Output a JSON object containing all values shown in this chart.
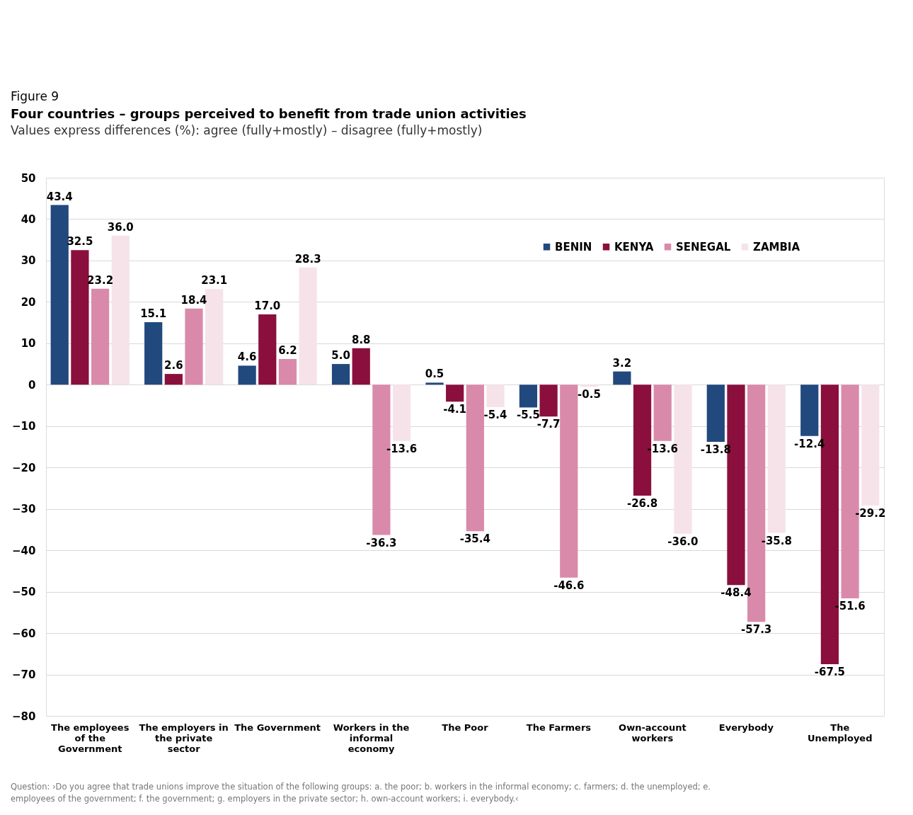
{
  "chart_data": {
    "type": "bar",
    "title": "Four countries – groups perceived to benefit from trade union activities",
    "subtitle": "Values express differences (%): agree (fully+mostly) – disagree (fully+mostly)",
    "annotations": [
      "Figure 9",
      "Question: ›Do you agree that trade unions improve the situation of the following groups: a. the poor; b. workers in the informal economy; c. farmers; d. the unemployed; e. employees of the government; f. the government; g. employers in the private sector; h. own-account workers; i. everybody.‹"
    ],
    "categories": [
      "The employees\nof the\nGovernment",
      "The employers in\nthe private\nsector",
      "The Government",
      "Workers in the\ninformal\neconomy",
      "The Poor",
      "The Farmers",
      "Own-account\nworkers",
      "Everybody",
      "The\nUnemployed"
    ],
    "series": [
      {
        "name": "BENIN",
        "color": "#22497d",
        "values": [
          43.4,
          15.1,
          4.6,
          5.0,
          0.5,
          -5.5,
          3.2,
          -13.8,
          -12.4
        ],
        "value_labels": [
          "43.4",
          "15.1",
          "4.6",
          "5.0",
          "0.5",
          "-5.5",
          "3.2",
          "-13.8",
          "-12.4"
        ]
      },
      {
        "name": "KENYA",
        "color": "#8a0f3c",
        "values": [
          32.5,
          2.6,
          17.0,
          8.8,
          -4.1,
          -7.7,
          -26.8,
          -48.4,
          -67.5
        ],
        "value_labels": [
          "32.5",
          "2.6",
          "17.0",
          "8.8",
          "-4.1",
          "-7.7",
          "-26.8",
          "-48.4",
          "-67.5"
        ]
      },
      {
        "name": "SENEGAL",
        "color": "#d98aaa",
        "values": [
          23.2,
          18.4,
          6.2,
          -36.3,
          -35.4,
          -46.6,
          -13.6,
          -57.3,
          -51.6
        ],
        "value_labels": [
          "23.2",
          "18.4",
          "6.2",
          "-36.3",
          "-35.4",
          "-46.6",
          "-13.6",
          "-57.3",
          "-51.6"
        ]
      },
      {
        "name": "ZAMBIA",
        "color": "#f6e3ea",
        "values": [
          36.0,
          23.1,
          28.3,
          -13.6,
          -5.4,
          -0.5,
          -36.0,
          -35.8,
          -29.2
        ],
        "value_labels": [
          "36.0",
          "23.1",
          "28.3",
          "-13.6",
          "-5.4",
          "-0.5",
          "-36.0",
          "-35.8",
          "-29.2"
        ]
      }
    ],
    "ylim": [
      -80,
      50
    ],
    "yticks": [
      -80,
      -70,
      -60,
      -50,
      -40,
      -30,
      -20,
      -10,
      0,
      10,
      20,
      30,
      40,
      50
    ],
    "grid": "y",
    "legend": "top right"
  }
}
